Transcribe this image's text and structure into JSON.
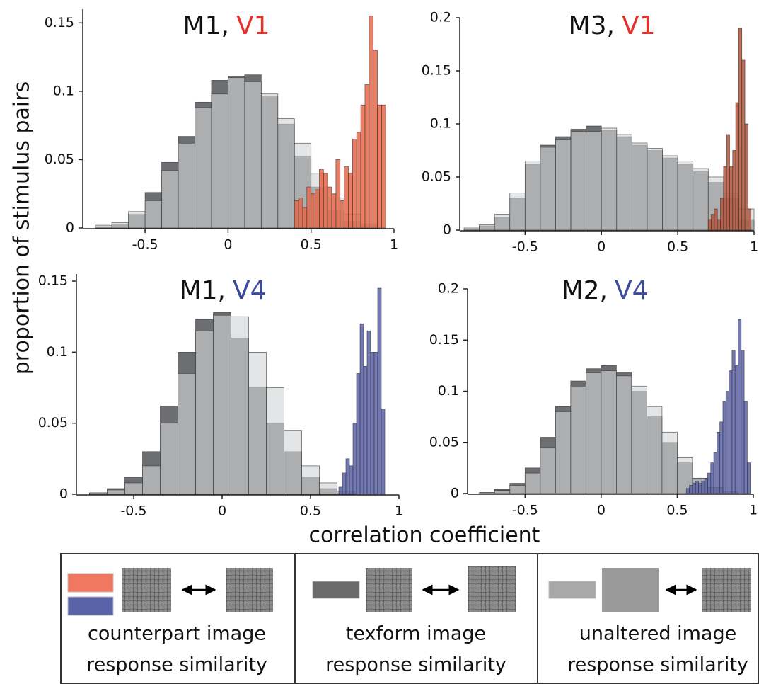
{
  "axis_labels": {
    "y": "proportion of stimulus pairs",
    "x": "correlation coefficient"
  },
  "chart_data": [
    {
      "type": "histogram",
      "title": "M1,",
      "title_area": "V1",
      "title_area_color": "#e8302a",
      "xlim": [
        -0.85,
        1
      ],
      "ylim": [
        0,
        0.16
      ],
      "xticks": [
        -0.5,
        0,
        0.5,
        1
      ],
      "yticks": [
        0,
        0.05,
        0.1,
        0.15
      ],
      "series": [
        {
          "color": "#6d6e71",
          "bins": [
            -0.8,
            -0.7,
            -0.6,
            -0.5,
            -0.4,
            -0.3,
            -0.2,
            -0.1,
            0,
            0.1,
            0.2,
            0.3,
            0.4,
            0.5,
            0.6,
            0.7,
            0.8,
            0.9
          ],
          "values": [
            0.001,
            0.003,
            0.01,
            0.026,
            0.048,
            0.067,
            0.092,
            0.108,
            0.111,
            0.112,
            0.096,
            0.076,
            0.052,
            0.03,
            0.013,
            0.005,
            0.002
          ]
        },
        {
          "color": "#d4d5d7",
          "bins": [
            -0.8,
            -0.7,
            -0.6,
            -0.5,
            -0.4,
            -0.3,
            -0.2,
            -0.1,
            0,
            0.1,
            0.2,
            0.3,
            0.4,
            0.5,
            0.6,
            0.7,
            0.8,
            0.9
          ],
          "values": [
            0.002,
            0.004,
            0.012,
            0.02,
            0.042,
            0.062,
            0.088,
            0.098,
            0.11,
            0.107,
            0.098,
            0.08,
            0.062,
            0.04,
            0.022,
            0.01,
            0.003
          ]
        },
        {
          "color": "#e8694a",
          "bins": [
            0.4,
            0.425,
            0.45,
            0.475,
            0.5,
            0.525,
            0.55,
            0.575,
            0.6,
            0.625,
            0.65,
            0.675,
            0.7,
            0.725,
            0.75,
            0.775,
            0.8,
            0.825,
            0.85,
            0.875,
            0.9,
            0.925,
            0.95
          ],
          "values": [
            0.02,
            0.022,
            0.015,
            0.03,
            0.025,
            0.028,
            0.043,
            0.04,
            0.03,
            0.025,
            0.05,
            0.02,
            0.045,
            0.04,
            0.065,
            0.07,
            0.09,
            0.105,
            0.155,
            0.13,
            0.09,
            0.09
          ]
        }
      ]
    },
    {
      "type": "histogram",
      "title": "M3,",
      "title_area": "V1",
      "title_area_color": "#e8302a",
      "xlim": [
        -0.9,
        1
      ],
      "ylim": [
        0,
        0.2
      ],
      "xticks": [
        -0.5,
        0,
        0.5,
        1
      ],
      "yticks": [
        0,
        0.05,
        0.1,
        0.15,
        0.2
      ],
      "series": [
        {
          "color": "#6d6e71",
          "bins": [
            -0.9,
            -0.8,
            -0.7,
            -0.6,
            -0.5,
            -0.4,
            -0.3,
            -0.2,
            -0.1,
            0,
            0.1,
            0.2,
            0.3,
            0.4,
            0.5,
            0.6,
            0.7,
            0.8,
            0.9,
            1
          ],
          "values": [
            0.001,
            0.004,
            0.012,
            0.03,
            0.062,
            0.08,
            0.088,
            0.095,
            0.098,
            0.094,
            0.088,
            0.08,
            0.075,
            0.068,
            0.062,
            0.055,
            0.045,
            0.03,
            0.01
          ]
        },
        {
          "color": "#d4d5d7",
          "bins": [
            -0.9,
            -0.8,
            -0.7,
            -0.6,
            -0.5,
            -0.4,
            -0.3,
            -0.2,
            -0.1,
            0,
            0.1,
            0.2,
            0.3,
            0.4,
            0.5,
            0.6,
            0.7,
            0.8,
            0.9,
            1
          ],
          "values": [
            0.002,
            0.005,
            0.015,
            0.035,
            0.065,
            0.078,
            0.085,
            0.093,
            0.093,
            0.096,
            0.09,
            0.082,
            0.077,
            0.07,
            0.065,
            0.058,
            0.05,
            0.035,
            0.02
          ]
        },
        {
          "color": "#b5553a",
          "bins": [
            0.7,
            0.72,
            0.74,
            0.76,
            0.78,
            0.8,
            0.82,
            0.84,
            0.86,
            0.88,
            0.9,
            0.92,
            0.94,
            0.96,
            0.98
          ],
          "values": [
            0.01,
            0.015,
            0.02,
            0.01,
            0.03,
            0.06,
            0.09,
            0.06,
            0.075,
            0.12,
            0.19,
            0.16,
            0.1,
            0.02
          ]
        }
      ]
    },
    {
      "type": "histogram",
      "title": "M1,",
      "title_area": "V4",
      "title_area_color": "#3b4a9c",
      "xlim": [
        -0.8,
        1
      ],
      "ylim": [
        0,
        0.155
      ],
      "xticks": [
        -0.5,
        0,
        0.5,
        1
      ],
      "yticks": [
        0,
        0.05,
        0.1,
        0.15
      ],
      "series": [
        {
          "color": "#6d6e71",
          "bins": [
            -0.75,
            -0.65,
            -0.55,
            -0.45,
            -0.35,
            -0.25,
            -0.15,
            -0.05,
            0.05,
            0.15,
            0.25,
            0.35,
            0.45,
            0.55,
            0.65,
            0.75
          ],
          "values": [
            0.001,
            0.004,
            0.012,
            0.03,
            0.062,
            0.1,
            0.123,
            0.128,
            0.11,
            0.075,
            0.05,
            0.03,
            0.012,
            0.004,
            0.001
          ]
        },
        {
          "color": "#d4d5d7",
          "bins": [
            -0.75,
            -0.65,
            -0.55,
            -0.45,
            -0.35,
            -0.25,
            -0.15,
            -0.05,
            0.05,
            0.15,
            0.25,
            0.35,
            0.45,
            0.55,
            0.65,
            0.75
          ],
          "values": [
            0.001,
            0.003,
            0.008,
            0.02,
            0.05,
            0.085,
            0.115,
            0.126,
            0.125,
            0.1,
            0.075,
            0.045,
            0.02,
            0.008,
            0.002
          ]
        },
        {
          "color": "#5a62a8",
          "bins": [
            0.66,
            0.68,
            0.7,
            0.72,
            0.74,
            0.76,
            0.78,
            0.8,
            0.82,
            0.84,
            0.86,
            0.88,
            0.9,
            0.92
          ],
          "values": [
            0.005,
            0.015,
            0.025,
            0.02,
            0.05,
            0.085,
            0.12,
            0.09,
            0.115,
            0.1,
            0.1,
            0.145,
            0.06
          ]
        }
      ]
    },
    {
      "type": "histogram",
      "title": "M2,",
      "title_area": "V4",
      "title_area_color": "#3b4a9c",
      "xlim": [
        -0.85,
        1
      ],
      "ylim": [
        0,
        0.2
      ],
      "xticks": [
        -0.5,
        0,
        0.5,
        1
      ],
      "yticks": [
        0,
        0.05,
        0.1,
        0.15,
        0.2
      ],
      "series": [
        {
          "color": "#6d6e71",
          "bins": [
            -0.8,
            -0.7,
            -0.6,
            -0.5,
            -0.4,
            -0.3,
            -0.2,
            -0.1,
            0,
            0.1,
            0.2,
            0.3,
            0.4,
            0.5,
            0.6,
            0.7,
            0.8,
            0.9
          ],
          "values": [
            0.001,
            0.004,
            0.01,
            0.025,
            0.055,
            0.085,
            0.11,
            0.122,
            0.125,
            0.118,
            0.1,
            0.075,
            0.05,
            0.03,
            0.015,
            0.006,
            0.002
          ]
        },
        {
          "color": "#d4d5d7",
          "bins": [
            -0.8,
            -0.7,
            -0.6,
            -0.5,
            -0.4,
            -0.3,
            -0.2,
            -0.1,
            0,
            0.1,
            0.2,
            0.3,
            0.4,
            0.5,
            0.6,
            0.7,
            0.8,
            0.9
          ],
          "values": [
            0.001,
            0.003,
            0.008,
            0.02,
            0.045,
            0.08,
            0.105,
            0.118,
            0.12,
            0.115,
            0.105,
            0.085,
            0.06,
            0.035,
            0.015,
            0.006,
            0.002
          ]
        },
        {
          "color": "#5a62a8",
          "bins": [
            0.56,
            0.58,
            0.6,
            0.62,
            0.64,
            0.66,
            0.68,
            0.7,
            0.72,
            0.74,
            0.76,
            0.78,
            0.8,
            0.82,
            0.84,
            0.86,
            0.88,
            0.9,
            0.92,
            0.94,
            0.96,
            0.98
          ],
          "values": [
            0.005,
            0.008,
            0.01,
            0.012,
            0.01,
            0.012,
            0.015,
            0.02,
            0.03,
            0.04,
            0.06,
            0.07,
            0.09,
            0.1,
            0.12,
            0.14,
            0.125,
            0.17,
            0.14,
            0.09,
            0.03
          ]
        }
      ]
    }
  ],
  "legend": {
    "items": [
      {
        "colors": [
          "#f07860",
          "#5a62a8"
        ],
        "lines": [
          "counterpart image",
          "response similarity"
        ]
      },
      {
        "colors": [
          "#6b6b6b"
        ],
        "lines": [
          "texform image",
          "response similarity"
        ]
      },
      {
        "colors": [
          "#a8a8a8"
        ],
        "lines": [
          "unaltered image",
          "response similarity"
        ]
      }
    ]
  }
}
